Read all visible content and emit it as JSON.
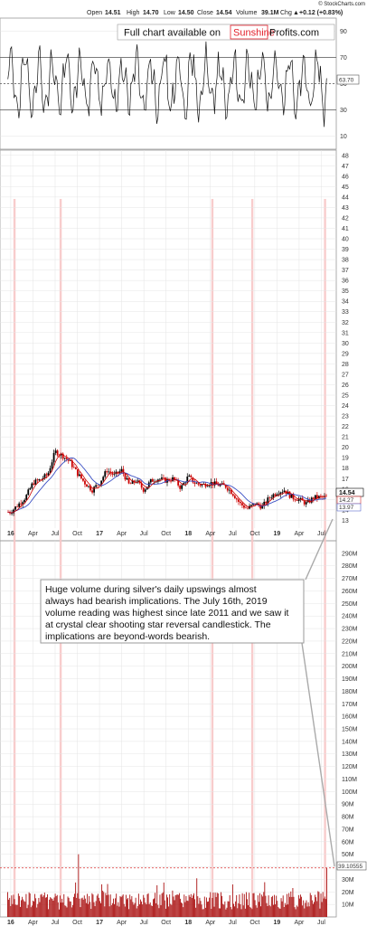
{
  "header": {
    "source": "© StockCharts.com",
    "open_label": "Open",
    "open": "14.51",
    "high_label": "High",
    "high": "14.70",
    "low_label": "Low",
    "low": "14.50",
    "close_label": "Close",
    "close": "14.54",
    "volume_label": "Volume",
    "volume": "39.1M",
    "chg_label": "Chg",
    "chg": "+0.12 (+0.83%)",
    "up_arrow": "▲"
  },
  "banner": {
    "prefix": "Full chart available on",
    "brand_red": "Sunshine",
    "brand_black": "Profits.com"
  },
  "annotation": {
    "lines": [
      "Huge volume during silver's daily upswings almost",
      "always had bearish implications. The July 16th, 2019",
      "volume reading was highest since late 2011 and we saw it",
      "at crystal clear shooting star reversal candlestick. The",
      "implications are beyond-words bearish."
    ]
  },
  "colors": {
    "candle_up": "#000000",
    "candle_down": "#cc0000",
    "ma_fast": "#cc0000",
    "ma_slow": "#3a4fc4",
    "volume_bar": "#aa1111",
    "highlight_band": "#f7c7c7",
    "rsi_line": "#111111",
    "grid": "#e4e4e4"
  },
  "chart_data": [
    {
      "type": "line",
      "name": "rsi",
      "ylim": [
        0,
        100
      ],
      "y_ticks": [
        "90",
        "70",
        "50",
        "30",
        "10"
      ],
      "reference_lines": [
        70,
        50,
        30
      ],
      "last_value_tag": "63.70",
      "grid": true
    },
    {
      "type": "candlestick",
      "name": "price",
      "ylim": [
        12.6,
        48.5
      ],
      "y_ticks": [
        "48",
        "47",
        "46",
        "45",
        "44",
        "43",
        "42",
        "41",
        "40",
        "39",
        "38",
        "37",
        "36",
        "35",
        "34",
        "33",
        "32",
        "31",
        "30",
        "29",
        "28",
        "27",
        "26",
        "25",
        "24",
        "23",
        "22",
        "21",
        "20",
        "19",
        "18",
        "17",
        "16",
        "15",
        "14",
        "13"
      ],
      "x_ticks": [
        "16",
        "Apr",
        "Jul",
        "Oct",
        "17",
        "Apr",
        "Jul",
        "Oct",
        "18",
        "Apr",
        "Jul",
        "Oct",
        "19",
        "Apr",
        "Jul"
      ],
      "x_ticks_bold": [
        "16",
        "17",
        "18",
        "19"
      ],
      "last_close_tag": "14.54",
      "ma_tags": [
        "14.27",
        "13.97"
      ],
      "series_points": [
        [
          "2016-01",
          13.8
        ],
        [
          "2016-02",
          14.5
        ],
        [
          "2016-03",
          15.2
        ],
        [
          "2016-04",
          16.6
        ],
        [
          "2016-05",
          16.9
        ],
        [
          "2016-06",
          17.4
        ],
        [
          "2016-07",
          19.6
        ],
        [
          "2016-08",
          19.2
        ],
        [
          "2016-09",
          18.6
        ],
        [
          "2016-10",
          17.5
        ],
        [
          "2016-11",
          16.6
        ],
        [
          "2016-12",
          15.9
        ],
        [
          "2017-01",
          16.6
        ],
        [
          "2017-02",
          17.8
        ],
        [
          "2017-03",
          17.3
        ],
        [
          "2017-04",
          17.8
        ],
        [
          "2017-05",
          16.4
        ],
        [
          "2017-06",
          16.8
        ],
        [
          "2017-07",
          15.9
        ],
        [
          "2017-08",
          16.8
        ],
        [
          "2017-09",
          17.0
        ],
        [
          "2017-10",
          16.8
        ],
        [
          "2017-11",
          17.0
        ],
        [
          "2017-12",
          16.1
        ],
        [
          "2018-01",
          17.2
        ],
        [
          "2018-02",
          16.5
        ],
        [
          "2018-03",
          16.4
        ],
        [
          "2018-04",
          16.6
        ],
        [
          "2018-05",
          16.4
        ],
        [
          "2018-06",
          16.3
        ],
        [
          "2018-07",
          15.6
        ],
        [
          "2018-08",
          14.6
        ],
        [
          "2018-09",
          14.1
        ],
        [
          "2018-10",
          14.6
        ],
        [
          "2018-11",
          14.3
        ],
        [
          "2018-12",
          15.2
        ],
        [
          "2019-01",
          15.7
        ],
        [
          "2019-02",
          15.9
        ],
        [
          "2019-03",
          15.2
        ],
        [
          "2019-04",
          15.0
        ],
        [
          "2019-05",
          14.6
        ],
        [
          "2019-06",
          15.2
        ],
        [
          "2019-07",
          15.2
        ]
      ]
    },
    {
      "type": "bar",
      "name": "volume",
      "unit": "M",
      "ylim": [
        0,
        300
      ],
      "y_ticks": [
        "290M",
        "280M",
        "270M",
        "260M",
        "250M",
        "240M",
        "230M",
        "220M",
        "210M",
        "200M",
        "190M",
        "180M",
        "170M",
        "160M",
        "150M",
        "140M",
        "130M",
        "120M",
        "110M",
        "100M",
        "90M",
        "80M",
        "70M",
        "60M",
        "50M",
        "40M",
        "30M",
        "20M",
        "10M"
      ],
      "last_value_tag": "39.10555",
      "reference_line": 39.1,
      "x_ticks": [
        "16",
        "Apr",
        "Jul",
        "Oct",
        "17",
        "Apr",
        "Jul",
        "Oct",
        "18",
        "Apr",
        "Jul",
        "Oct",
        "19",
        "Apr",
        "Jul"
      ],
      "x_ticks_bold": [
        "16",
        "17",
        "18",
        "19"
      ],
      "notable_spikes": [
        [
          "2016-10",
          50
        ],
        [
          "2019-07",
          39.1
        ]
      ]
    }
  ]
}
